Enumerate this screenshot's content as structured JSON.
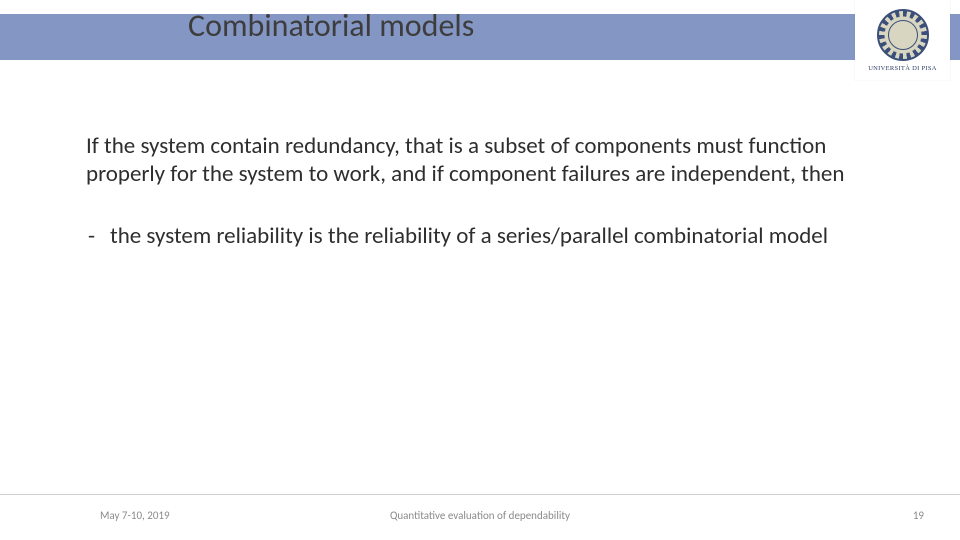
{
  "header": {
    "title": "Combinatorial models",
    "bar_color": "#8496c3",
    "logo_caption": "UNIVERSITÀ DI PISA"
  },
  "body": {
    "paragraph": "If the system contain redundancy, that is a subset of components must function properly for the system to work, and if component failures are independent, then",
    "bullet": "the system reliability is the reliability of a series/parallel combinatorial model"
  },
  "footer": {
    "date": "May 7-10, 2019",
    "center": "Quantitative evaluation of dependability",
    "page": "19",
    "line_color": "#cfcfcf",
    "text_color": "#8a8a8a"
  }
}
